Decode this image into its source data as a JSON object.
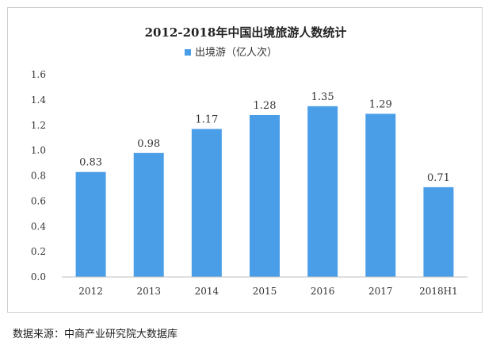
{
  "source": "数据来源：中商产业研究院大数据库",
  "chart_data": {
    "type": "bar",
    "title": "2012-2018年中国出境旅游人数统计",
    "legend": {
      "label": "出境游（亿人次）",
      "position": "top"
    },
    "categories": [
      "2012",
      "2013",
      "2014",
      "2015",
      "2016",
      "2017",
      "2018H1"
    ],
    "series": [
      {
        "name": "出境游（亿人次）",
        "values": [
          0.83,
          0.98,
          1.17,
          1.28,
          1.35,
          1.29,
          0.71
        ]
      }
    ],
    "data_labels": [
      "0.83",
      "0.98",
      "1.17",
      "1.28",
      "1.35",
      "1.29",
      "0.71"
    ],
    "yticks": [
      "0.0",
      "0.2",
      "0.4",
      "0.6",
      "0.8",
      "1.0",
      "1.2",
      "1.4",
      "1.6"
    ],
    "ylim": [
      0,
      1.6
    ],
    "grid": false,
    "colors": {
      "bar": "#4a9ee8",
      "axis": "#bfbfbf",
      "text": "#333333"
    }
  }
}
